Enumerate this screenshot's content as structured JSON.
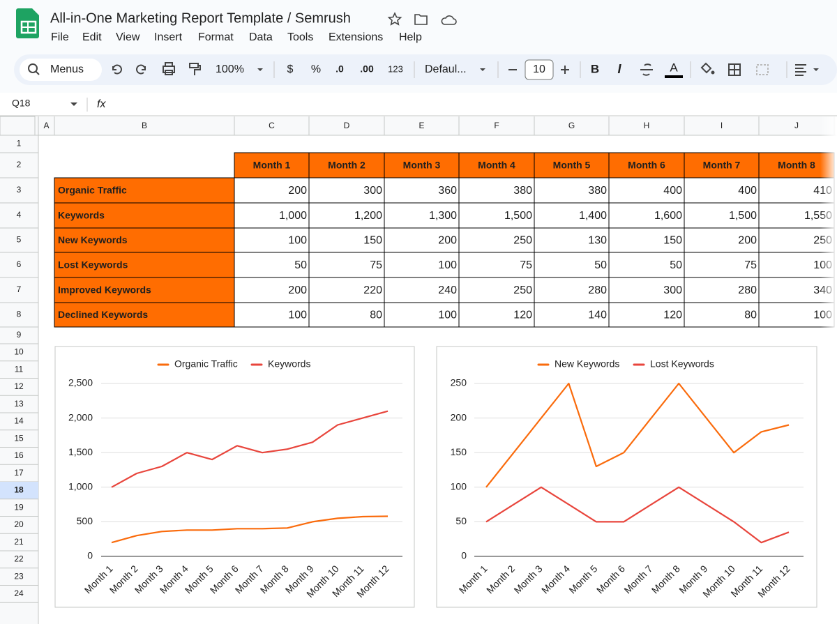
{
  "header": {
    "title": "All-in-One Marketing Report Template / Semrush",
    "menu": [
      "File",
      "Edit",
      "View",
      "Insert",
      "Format",
      "Data",
      "Tools",
      "Extensions",
      "Help"
    ]
  },
  "toolbar": {
    "search": "Menus",
    "zoom": "100%",
    "currency": "$",
    "percent": "%",
    "decrease_decimal": ".0",
    "increase_decimal": ".00",
    "number_format": "123",
    "font": "Defaul...",
    "font_size": "10",
    "bold": "B",
    "italic": "I",
    "text_color": "A"
  },
  "formula_bar": {
    "cell": "Q18",
    "fx": "fx"
  },
  "columns": [
    "A",
    "B",
    "C",
    "D",
    "E",
    "F",
    "G",
    "H",
    "I",
    "J"
  ],
  "rows": [
    "1",
    "2",
    "3",
    "4",
    "5",
    "6",
    "7",
    "8",
    "9",
    "10",
    "11",
    "12",
    "13",
    "14",
    "15",
    "16",
    "17",
    "18",
    "19",
    "20",
    "21",
    "22",
    "23",
    "24"
  ],
  "table": {
    "header": [
      "Month 1",
      "Month 2",
      "Month 3",
      "Month 4",
      "Month 5",
      "Month 6",
      "Month 7",
      "Month 8"
    ],
    "rows": [
      [
        "Organic Traffic",
        "200",
        "300",
        "360",
        "380",
        "380",
        "400",
        "400",
        "410"
      ],
      [
        "Keywords",
        "1,000",
        "1,200",
        "1,300",
        "1,500",
        "1,400",
        "1,600",
        "1,500",
        "1,550"
      ],
      [
        "New Keywords",
        "100",
        "150",
        "200",
        "250",
        "130",
        "150",
        "200",
        "250"
      ],
      [
        "Lost Keywords",
        "50",
        "75",
        "100",
        "75",
        "50",
        "50",
        "75",
        "100"
      ],
      [
        "Improved Keywords",
        "200",
        "220",
        "240",
        "250",
        "280",
        "300",
        "280",
        "340"
      ],
      [
        "Declined Keywords",
        "100",
        "80",
        "100",
        "120",
        "140",
        "120",
        "80",
        "100"
      ]
    ]
  },
  "chart_data": [
    {
      "type": "line",
      "categories": [
        "Month 1",
        "Month 2",
        "Month 3",
        "Month 4",
        "Month 5",
        "Month 6",
        "Month 7",
        "Month 8",
        "Month 9",
        "Month 10",
        "Month 11",
        "Month 12"
      ],
      "series": [
        {
          "name": "Organic Traffic",
          "color": "#fa6b0c",
          "values": [
            200,
            300,
            360,
            380,
            380,
            400,
            400,
            410,
            500,
            550,
            575,
            580
          ]
        },
        {
          "name": "Keywords",
          "color": "#e8453c",
          "values": [
            1000,
            1200,
            1300,
            1500,
            1400,
            1600,
            1500,
            1550,
            1650,
            1900,
            2000,
            2100
          ]
        }
      ],
      "ylim": [
        0,
        2500
      ],
      "yticks": [
        0,
        500,
        {
          "value": 1000,
          "label": "1,000"
        },
        {
          "value": 1500,
          "label": "1,500"
        },
        {
          "value": 2000,
          "label": "2,000"
        },
        {
          "value": 2500,
          "label": "2,500"
        }
      ],
      "grid": true,
      "legend": "top"
    },
    {
      "type": "line",
      "categories": [
        "Month 1",
        "Month 2",
        "Month 3",
        "Month 4",
        "Month 5",
        "Month 6",
        "Month 7",
        "Month 8",
        "Month 9",
        "Month 10",
        "Month 11",
        "Month 12"
      ],
      "series": [
        {
          "name": "New Keywords",
          "color": "#fa6b0c",
          "values": [
            100,
            150,
            200,
            250,
            130,
            150,
            200,
            250,
            200,
            150,
            180,
            190
          ]
        },
        {
          "name": "Lost Keywords",
          "color": "#e8453c",
          "values": [
            50,
            75,
            100,
            75,
            50,
            50,
            75,
            100,
            75,
            50,
            20,
            35
          ]
        }
      ],
      "ylim": [
        0,
        250
      ],
      "yticks": [
        0,
        50,
        100,
        150,
        200,
        250
      ],
      "grid": true,
      "legend": "top"
    }
  ]
}
